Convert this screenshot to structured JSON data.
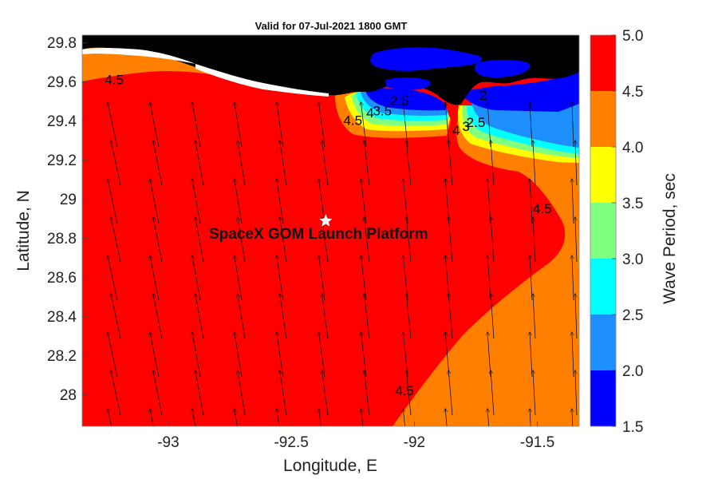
{
  "title": "Valid for 07-Jul-2021 1800 GMT",
  "annotation": "SpaceX GOM Launch Platform",
  "chart_data": {
    "type": "heatmap",
    "title": "Valid for 07-Jul-2021 1800 GMT",
    "xlabel": "Longitude, E",
    "ylabel": "Latitude, N",
    "xlim": [
      -93.35,
      -91.33
    ],
    "ylim": [
      27.84,
      29.84
    ],
    "x_ticks": [
      -93,
      -92.5,
      -92,
      -91.5
    ],
    "x_tick_labels": [
      "-93",
      "-92.5",
      "-92",
      "-91.5"
    ],
    "y_ticks": [
      28,
      28.2,
      28.4,
      28.6,
      28.8,
      29,
      29.2,
      29.4,
      29.6,
      29.8
    ],
    "y_tick_labels": [
      "28",
      "28.2",
      "28.4",
      "28.6",
      "28.8",
      "29",
      "29.2",
      "29.4",
      "29.6",
      "29.8"
    ],
    "colorbar": {
      "label": "Wave Period, sec",
      "levels": [
        1.5,
        2.0,
        2.5,
        3.0,
        3.5,
        4.0,
        4.5,
        5.0
      ],
      "tick_labels": [
        "1.5",
        "2.0",
        "2.5",
        "3.0",
        "3.5",
        "4.0",
        "4.5",
        "5.0"
      ],
      "colors": [
        "#0000ff",
        "#1e8fff",
        "#00ffff",
        "#80ff80",
        "#ffff00",
        "#ff8000",
        "#ff0000"
      ]
    },
    "land_color": "#000000",
    "contour_labels": [
      {
        "text": "4.5",
        "lon": -93.22,
        "lat": 29.59
      },
      {
        "text": "4.5",
        "lon": -92.25,
        "lat": 29.38
      },
      {
        "text": "4",
        "lon": -92.18,
        "lat": 29.42
      },
      {
        "text": "3.5",
        "lon": -92.13,
        "lat": 29.43
      },
      {
        "text": "2.5",
        "lon": -92.06,
        "lat": 29.48
      },
      {
        "text": "2",
        "lon": -91.72,
        "lat": 29.51
      },
      {
        "text": "4",
        "lon": -91.83,
        "lat": 29.33
      },
      {
        "text": "3",
        "lon": -91.79,
        "lat": 29.35
      },
      {
        "text": "2.5",
        "lon": -91.75,
        "lat": 29.37
      },
      {
        "text": "4.5",
        "lon": -91.48,
        "lat": 28.93
      },
      {
        "text": "4.5",
        "lon": -92.04,
        "lat": 28.0
      }
    ],
    "marker": {
      "symbol": "star",
      "lon": -92.36,
      "lat": 28.89
    },
    "wind_arrows": "northward, slightly north-northwest"
  }
}
